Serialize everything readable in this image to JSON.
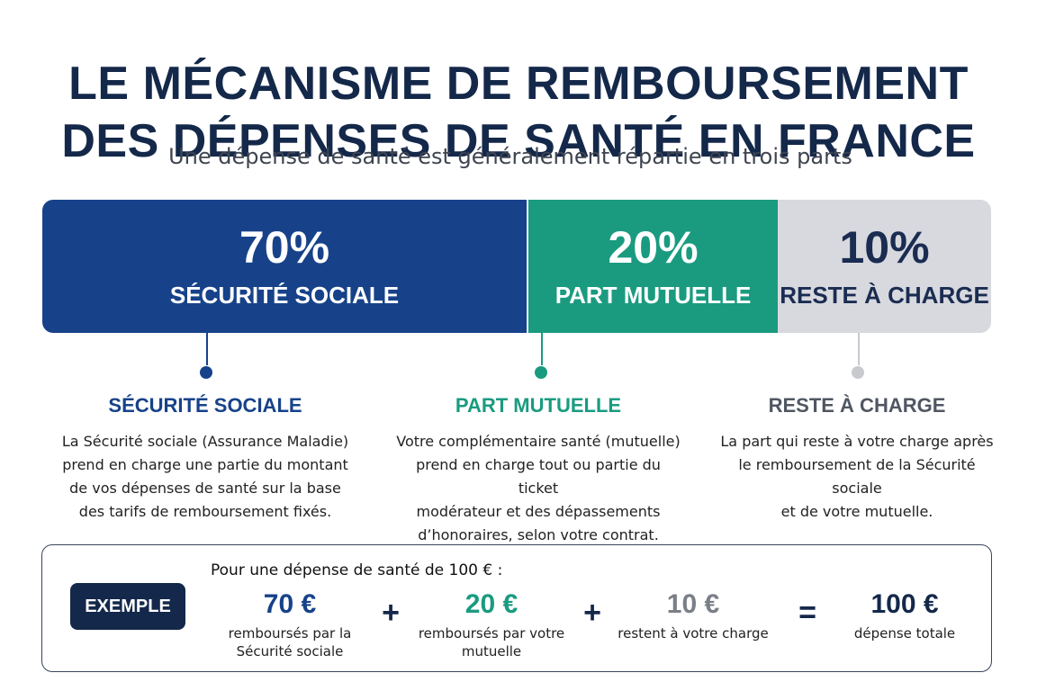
{
  "title": {
    "line1": "LE MÉCANISME DE REMBOURSEMENT",
    "line2": "DES DÉPENSES DE SANTÉ EN FRANCE"
  },
  "subtitle": "Une dépense de santé est généralement répartie en trois parts",
  "colors": {
    "securite_sociale": "#17428a",
    "mutuelle": "#1a9b80",
    "reste_a_charge": "#d7d9de",
    "dark_navy": "#13284a"
  },
  "bar": {
    "securite_sociale": {
      "percent": "70%",
      "label": "SÉCURITÉ SOCIALE",
      "share": 0.7
    },
    "mutuelle": {
      "percent": "20%",
      "label": "PART MUTUELLE",
      "share": 0.2
    },
    "reste_a_charge": {
      "percent": "10%",
      "label": "RESTE À CHARGE",
      "share": 0.1
    }
  },
  "columns": {
    "securite_sociale": {
      "heading": "SÉCURITÉ SOCIALE",
      "lines": [
        "La Sécurité sociale (Assurance Maladie)",
        "prend en charge une partie du montant",
        "de vos dépenses de santé sur la base",
        "des tarifs de remboursement fixés."
      ]
    },
    "mutuelle": {
      "heading": "PART MUTUELLE",
      "lines": [
        "Votre complémentaire santé (mutuelle)",
        "prend en charge tout ou partie du ticket",
        "modérateur et des dépassements",
        "d’honoraires, selon votre contrat."
      ]
    },
    "reste_a_charge": {
      "heading": "RESTE À CHARGE",
      "lines": [
        "La part qui reste à votre charge après",
        "le remboursement de la Sécurité sociale",
        "et de votre mutuelle."
      ]
    }
  },
  "example": {
    "badge": "EXEMPLE",
    "intro": "Pour une dépense de santé de 100 € :",
    "items": [
      {
        "amount": "70 €",
        "desc_line1": "remboursés par la",
        "desc_line2": "Sécurité sociale"
      },
      {
        "amount": "20 €",
        "desc_line1": "remboursés par votre",
        "desc_line2": "mutuelle"
      },
      {
        "amount": "10 €",
        "desc_line1": "restent à votre charge",
        "desc_line2": ""
      },
      {
        "amount": "100 €",
        "desc_line1": "dépense totale",
        "desc_line2": ""
      }
    ],
    "operators": [
      "+",
      "+",
      "="
    ]
  }
}
